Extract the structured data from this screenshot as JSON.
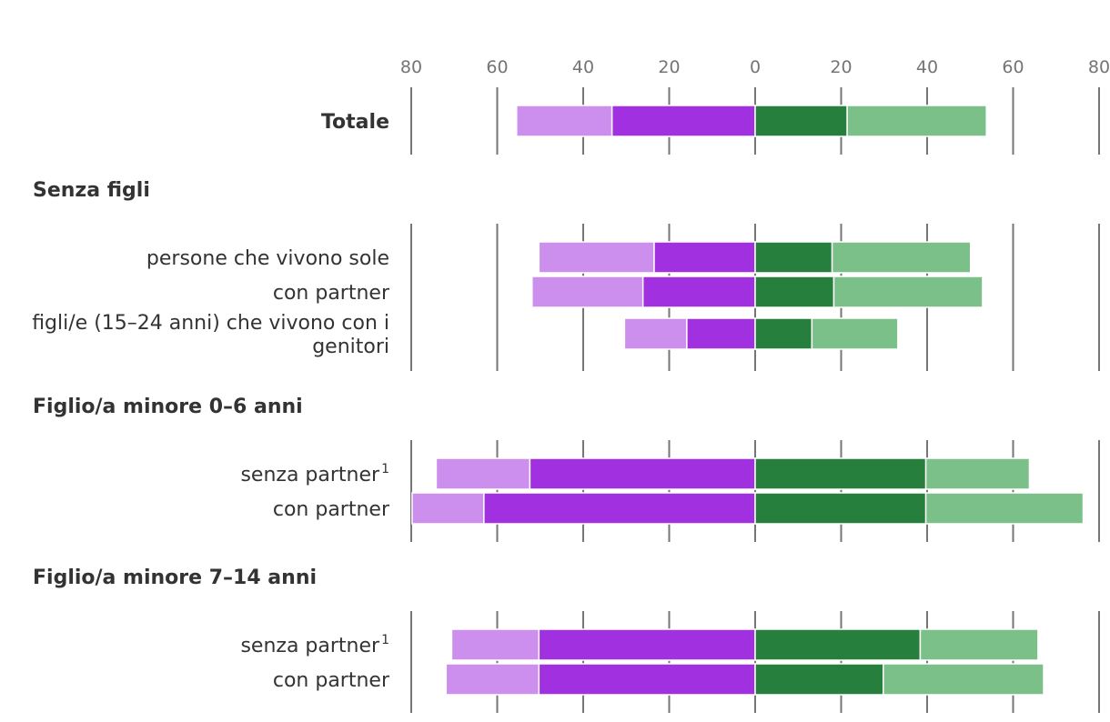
{
  "chart_data": {
    "type": "bar",
    "orientation": "horizontal-diverging",
    "xlim": [
      -80,
      80
    ],
    "ticks": [
      -80,
      -60,
      -40,
      -20,
      0,
      20,
      40,
      60,
      80
    ],
    "tick_labels": [
      "80",
      "60",
      "40",
      "20",
      "0",
      "20",
      "40",
      "60",
      "80"
    ],
    "colors": {
      "left_outer": "#cc8fee",
      "left_inner": "#a030e0",
      "right_inner": "#267f3c",
      "right_outer": "#7bbf89",
      "grid": "#767676"
    },
    "groups": [
      {
        "label": "",
        "rows": [
          {
            "label": "Totale",
            "superscript": "",
            "bold": true,
            "values": {
              "left_outer": 22.2,
              "left_inner": 33.3,
              "right_inner": 21.4,
              "right_outer": 32.4
            }
          }
        ]
      },
      {
        "label": "Senza figli",
        "rows": [
          {
            "label": "persone che vivono sole",
            "superscript": "",
            "bold": false,
            "values": {
              "left_outer": 26.8,
              "left_inner": 23.5,
              "right_inner": 17.9,
              "right_outer": 32.2
            }
          },
          {
            "label": "con partner",
            "superscript": "",
            "bold": false,
            "values": {
              "left_outer": 25.8,
              "left_inner": 26.1,
              "right_inner": 18.3,
              "right_outer": 34.6
            }
          },
          {
            "label": "figli/e (15–24 anni) che vivono con i",
            "label_line2": "genitori",
            "superscript": "",
            "bold": false,
            "values": {
              "left_outer": 14.5,
              "left_inner": 15.9,
              "right_inner": 13.2,
              "right_outer": 20.0
            }
          }
        ]
      },
      {
        "label": "Figlio/a minore 0–6 anni",
        "rows": [
          {
            "label": "senza partner",
            "superscript": "1",
            "bold": false,
            "values": {
              "left_outer": 21.8,
              "left_inner": 52.4,
              "right_inner": 39.7,
              "right_outer": 24.1
            }
          },
          {
            "label": "con partner",
            "superscript": "",
            "bold": false,
            "values": {
              "left_outer": 16.7,
              "left_inner": 63.1,
              "right_inner": 39.7,
              "right_outer": 36.6
            }
          }
        ]
      },
      {
        "label": "Figlio/a minore 7–14 anni",
        "rows": [
          {
            "label": "senza partner",
            "superscript": "1",
            "bold": false,
            "values": {
              "left_outer": 20.3,
              "left_inner": 50.3,
              "right_inner": 38.4,
              "right_outer": 27.4
            }
          },
          {
            "label": "con partner",
            "superscript": "",
            "bold": false,
            "values": {
              "left_outer": 21.6,
              "left_inner": 50.3,
              "right_inner": 29.8,
              "right_outer": 37.3
            }
          }
        ]
      }
    ]
  }
}
